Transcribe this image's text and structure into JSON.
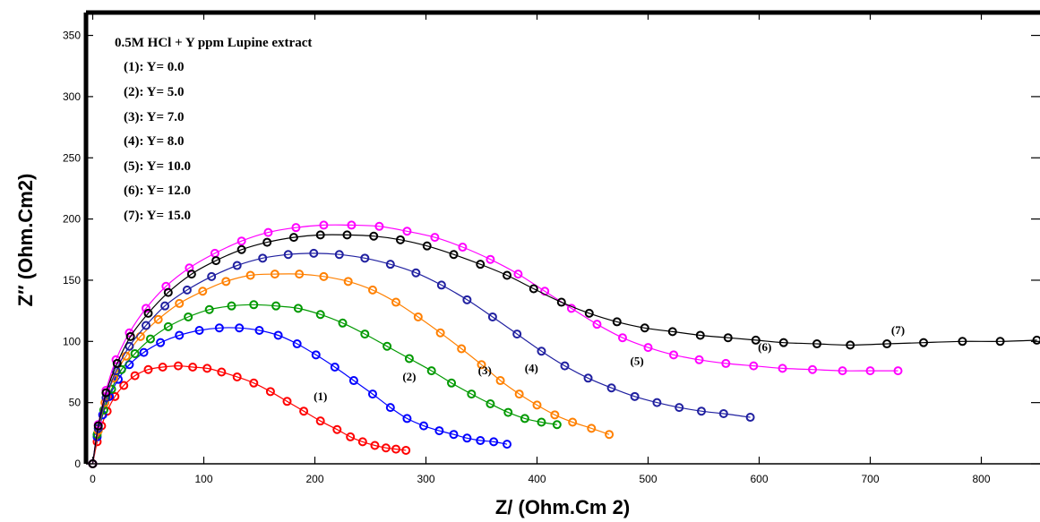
{
  "chart_data": {
    "type": "scatter",
    "xlabel": "Z/ (Ohm.Cm 2)",
    "ylabel": "Z″ (Ohm.Cm2)",
    "xlim": [
      -5,
      850
    ],
    "ylim": [
      0,
      360
    ],
    "xticks": [
      "0",
      "100",
      "200",
      "300",
      "400",
      "500",
      "600",
      "700",
      "800"
    ],
    "yticks": [
      "0",
      "50",
      "100",
      "150",
      "200",
      "250",
      "300",
      "350"
    ],
    "legend_title": "0.5M HCl + Y ppm Lupine extract",
    "legend_position": "top-left",
    "series": [
      {
        "name": "(1): Y= 0.0",
        "label": "(1)",
        "color": "#ff0000",
        "x": [
          0,
          4,
          8,
          13,
          20,
          28,
          38,
          50,
          63,
          77,
          90,
          103,
          116,
          130,
          145,
          160,
          175,
          190,
          205,
          220,
          232,
          243,
          254,
          264,
          273,
          282
        ],
        "y": [
          0,
          18,
          31,
          43,
          55,
          64,
          72,
          77,
          79,
          80,
          79,
          78,
          75,
          71,
          66,
          59,
          51,
          43,
          35,
          28,
          22,
          18,
          15,
          13,
          12,
          11
        ],
        "label_x": 205,
        "label_y": 52
      },
      {
        "name": "(2): Y= 5.0",
        "label": "(2)",
        "color": "#0000ff",
        "x": [
          0,
          4,
          9,
          15,
          23,
          33,
          46,
          61,
          78,
          96,
          114,
          132,
          150,
          167,
          184,
          201,
          218,
          235,
          252,
          268,
          283,
          298,
          312,
          325,
          337,
          349,
          361,
          373
        ],
        "y": [
          0,
          22,
          40,
          55,
          69,
          81,
          91,
          99,
          105,
          109,
          111,
          111,
          109,
          105,
          98,
          89,
          79,
          68,
          57,
          46,
          37,
          31,
          27,
          24,
          21,
          19,
          18,
          16
        ],
        "label_x": 285,
        "label_y": 68
      },
      {
        "name": "(3): Y= 7.0",
        "label": "(3)",
        "color": "#009900",
        "x": [
          0,
          4,
          10,
          17,
          26,
          38,
          52,
          68,
          86,
          105,
          125,
          145,
          165,
          185,
          205,
          225,
          245,
          265,
          285,
          305,
          323,
          341,
          358,
          374,
          389,
          404,
          418
        ],
        "y": [
          0,
          24,
          44,
          61,
          77,
          90,
          102,
          112,
          120,
          126,
          129,
          130,
          129,
          127,
          122,
          115,
          106,
          96,
          86,
          76,
          66,
          57,
          49,
          42,
          37,
          34,
          32
        ],
        "label_x": 353,
        "label_y": 73
      },
      {
        "name": "(4): Y= 8.0",
        "label": "(4)",
        "color": "#ff8000",
        "x": [
          0,
          5,
          11,
          19,
          30,
          43,
          59,
          78,
          99,
          120,
          142,
          164,
          186,
          208,
          230,
          252,
          273,
          293,
          313,
          332,
          350,
          367,
          384,
          400,
          416,
          432,
          449,
          465
        ],
        "y": [
          0,
          27,
          50,
          70,
          88,
          104,
          118,
          131,
          141,
          149,
          154,
          155,
          155,
          153,
          149,
          142,
          132,
          120,
          107,
          94,
          81,
          68,
          57,
          48,
          40,
          34,
          29,
          24
        ],
        "label_x": 395,
        "label_y": 75
      },
      {
        "name": "(5): Y= 10.0",
        "label": "(5)",
        "color": "#2020a0",
        "x": [
          0,
          5,
          12,
          21,
          33,
          48,
          65,
          85,
          107,
          130,
          153,
          176,
          199,
          222,
          245,
          268,
          291,
          314,
          337,
          360,
          382,
          404,
          425,
          446,
          467,
          488,
          508,
          528,
          548,
          568,
          592
        ],
        "y": [
          0,
          29,
          54,
          76,
          96,
          113,
          129,
          142,
          153,
          162,
          168,
          171,
          172,
          171,
          168,
          163,
          156,
          146,
          134,
          120,
          106,
          92,
          80,
          70,
          62,
          55,
          50,
          46,
          43,
          41,
          38
        ],
        "label_x": 490,
        "label_y": 81
      },
      {
        "name": "(6): Y= 12.0",
        "label": "(6)",
        "color": "#ff00ff",
        "x": [
          0,
          5,
          12,
          21,
          33,
          48,
          66,
          87,
          110,
          134,
          158,
          183,
          208,
          233,
          258,
          283,
          308,
          333,
          358,
          383,
          407,
          431,
          454,
          477,
          500,
          523,
          546,
          570,
          595,
          621,
          648,
          675,
          700,
          725
        ],
        "y": [
          0,
          32,
          60,
          85,
          107,
          127,
          145,
          160,
          172,
          182,
          189,
          193,
          195,
          195,
          194,
          190,
          185,
          177,
          167,
          155,
          141,
          127,
          114,
          103,
          95,
          89,
          85,
          82,
          80,
          78,
          77,
          76,
          76,
          76
        ],
        "label_x": 605,
        "label_y": 92
      },
      {
        "name": "(7): Y= 15.0",
        "label": "(7)",
        "color": "#000000",
        "x": [
          0,
          5,
          12,
          22,
          34,
          50,
          68,
          89,
          111,
          134,
          157,
          181,
          205,
          229,
          253,
          277,
          301,
          325,
          349,
          373,
          397,
          422,
          447,
          472,
          497,
          522,
          547,
          572,
          597,
          622,
          652,
          682,
          715,
          748,
          783,
          817,
          850
        ],
        "y": [
          0,
          31,
          58,
          82,
          104,
          123,
          140,
          155,
          166,
          175,
          181,
          185,
          187,
          187,
          186,
          183,
          178,
          171,
          163,
          154,
          143,
          132,
          123,
          116,
          111,
          108,
          105,
          103,
          101,
          99,
          98,
          97,
          98,
          99,
          100,
          100,
          101
        ],
        "label_x": 725,
        "label_y": 106
      }
    ]
  }
}
